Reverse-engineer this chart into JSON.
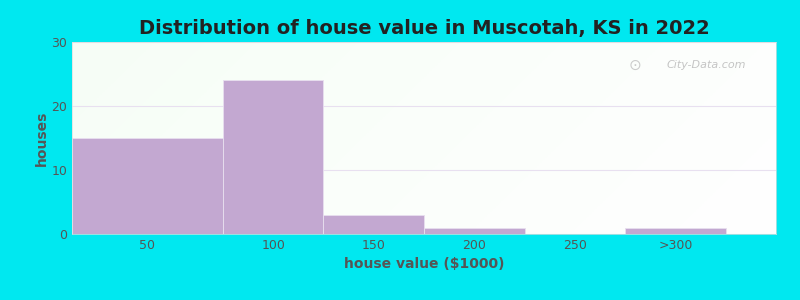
{
  "title": "Distribution of house value in Muscotah, KS in 2022",
  "xlabel": "house value ($1000)",
  "ylabel": "houses",
  "bar_heights": [
    15,
    24,
    3,
    1,
    0,
    1
  ],
  "bar_color": "#c3a8d1",
  "bar_edge_color": "#e8e0ef",
  "ylim": [
    0,
    30
  ],
  "yticks": [
    0,
    10,
    20,
    30
  ],
  "background_outer": "#00e8f0",
  "title_fontsize": 14,
  "axis_label_fontsize": 10,
  "tick_fontsize": 9,
  "watermark_text": "City-Data.com",
  "watermark_color": "#bbbbbb",
  "xtick_labels": [
    "50",
    "100",
    "150",
    "200",
    "250",
    ">300"
  ],
  "grid_color": "#e8e0f0",
  "grid_linewidth": 0.8,
  "bar_left_edges": [
    0,
    75,
    125,
    175,
    275,
    275
  ],
  "bar_right_edges": [
    75,
    125,
    175,
    225,
    325,
    325
  ]
}
